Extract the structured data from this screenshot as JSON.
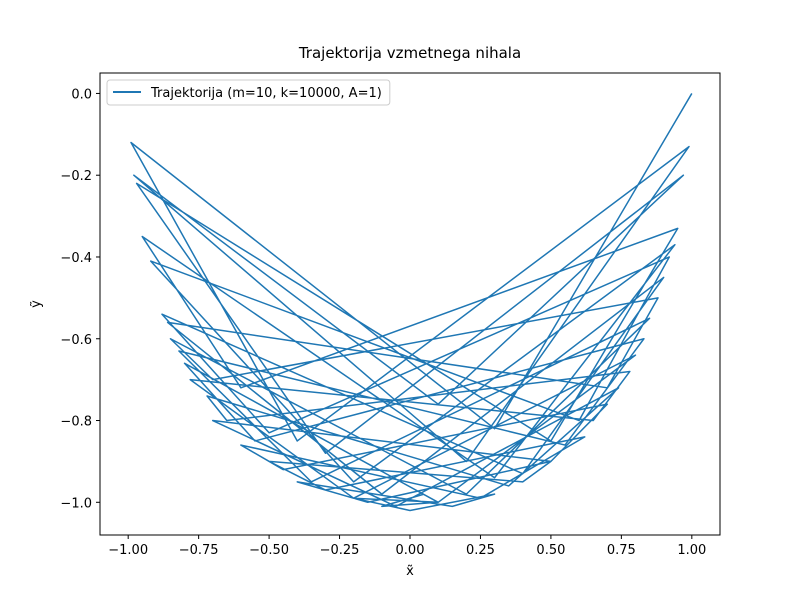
{
  "chart_data": {
    "type": "line",
    "title": "Trajektorija vzmetnega nihala",
    "xlabel": "x̃",
    "ylabel": "ỹ",
    "xlim": [
      -1.1,
      1.1
    ],
    "ylim": [
      -1.08,
      0.05
    ],
    "xticks": [
      {
        "value": -1,
        "label": "−1.00"
      },
      {
        "value": -0.75,
        "label": "−0.75"
      },
      {
        "value": -0.5,
        "label": "−0.50"
      },
      {
        "value": -0.25,
        "label": "−0.25"
      },
      {
        "value": 0,
        "label": "0.00"
      },
      {
        "value": 0.25,
        "label": "0.25"
      },
      {
        "value": 0.5,
        "label": "0.50"
      },
      {
        "value": 0.75,
        "label": "0.75"
      },
      {
        "value": 1,
        "label": "1.00"
      }
    ],
    "yticks": [
      {
        "value": -1,
        "label": "−1.0"
      },
      {
        "value": -0.8,
        "label": "−0.8"
      },
      {
        "value": -0.6,
        "label": "−0.6"
      },
      {
        "value": -0.4,
        "label": "−0.4"
      },
      {
        "value": -0.2,
        "label": "−0.2"
      },
      {
        "value": 0,
        "label": "0.0"
      }
    ],
    "legend": "upper left",
    "series": [
      {
        "name": "Trajektorija (m=10, k=10000, A=1)",
        "color": "#1f77b4",
        "x": [
          1.0,
          0.3,
          -0.99,
          -0.4,
          0.99,
          0.2,
          -0.98,
          0.1,
          0.97,
          -0.3,
          -0.97,
          0.5,
          0.95,
          -0.6,
          -0.95,
          0.3,
          0.94,
          -0.2,
          -0.92,
          0.6,
          0.92,
          -0.5,
          -0.88,
          0.4,
          0.9,
          -0.1,
          -0.86,
          0.7,
          0.88,
          -0.7,
          -0.85,
          0.2,
          0.85,
          -0.35,
          -0.82,
          0.55,
          0.83,
          -0.55,
          -0.8,
          0.1,
          0.8,
          -0.2,
          -0.78,
          0.65,
          0.78,
          -0.65,
          -0.72,
          0.35,
          0.74,
          -0.05,
          -0.7,
          0.5,
          0.7,
          -0.45,
          -0.6,
          0.25,
          0.62,
          -0.3,
          -0.5,
          0.4,
          0.5,
          -0.15,
          -0.4,
          0.15,
          0.3,
          0.0,
          -0.2,
          0.1,
          -0.1,
          0.05
        ],
        "y": [
          0.0,
          -0.82,
          -0.12,
          -0.85,
          -0.13,
          -0.9,
          -0.2,
          -0.76,
          -0.2,
          -0.88,
          -0.22,
          -0.85,
          -0.33,
          -0.72,
          -0.35,
          -0.94,
          -0.37,
          -0.95,
          -0.41,
          -0.8,
          -0.4,
          -0.83,
          -0.54,
          -0.93,
          -0.45,
          -0.98,
          -0.56,
          -0.72,
          -0.5,
          -0.7,
          -0.6,
          -0.98,
          -0.55,
          -0.95,
          -0.63,
          -0.86,
          -0.6,
          -0.85,
          -0.66,
          -1.0,
          -0.64,
          -0.99,
          -0.7,
          -0.8,
          -0.68,
          -0.8,
          -0.74,
          -0.96,
          -0.72,
          -1.01,
          -0.8,
          -0.9,
          -0.76,
          -0.92,
          -0.86,
          -0.99,
          -0.84,
          -0.97,
          -0.9,
          -0.95,
          -0.9,
          -1.0,
          -0.95,
          -1.01,
          -0.98,
          -1.02,
          -0.99,
          -1.0,
          -1.01,
          -0.98
        ]
      }
    ]
  }
}
